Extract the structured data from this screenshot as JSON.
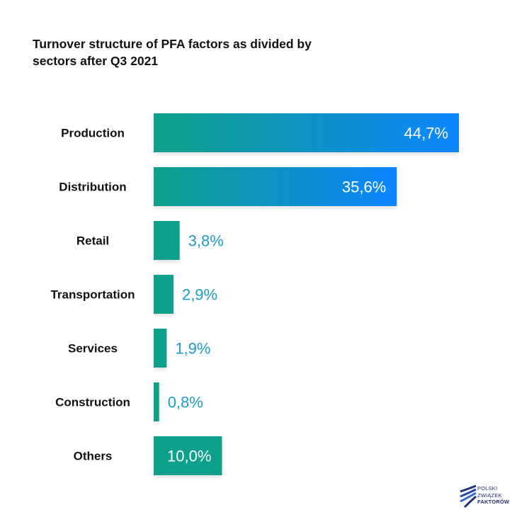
{
  "title": "Turnover structure of PFA factors as divided by sectors after Q3 2021",
  "chart_data": {
    "type": "bar",
    "orientation": "horizontal",
    "title": "Turnover structure of PFA factors as divided by sectors after Q3 2021",
    "categories": [
      "Production",
      "Distribution",
      "Retail",
      "Transportation",
      "Services",
      "Construction",
      "Others"
    ],
    "values": [
      44.7,
      35.6,
      3.8,
      2.9,
      1.9,
      0.8,
      10.0
    ],
    "data_labels": [
      "44,7%",
      "35,6%",
      "3,8%",
      "2,9%",
      "1,9%",
      "0,8%",
      "10,0%"
    ],
    "xlabel": "",
    "ylabel": "",
    "xlim": [
      0,
      44.7
    ],
    "grid": false,
    "colors": {
      "teal": "#0fa08a",
      "blue": "#0b86ff",
      "label_outside": "#1a9cc4",
      "label_inside": "#ffffff"
    }
  },
  "logo": {
    "line1": "POLSKI",
    "line2": "ZWIĄZEK",
    "line3": "FAKTORÓW"
  }
}
